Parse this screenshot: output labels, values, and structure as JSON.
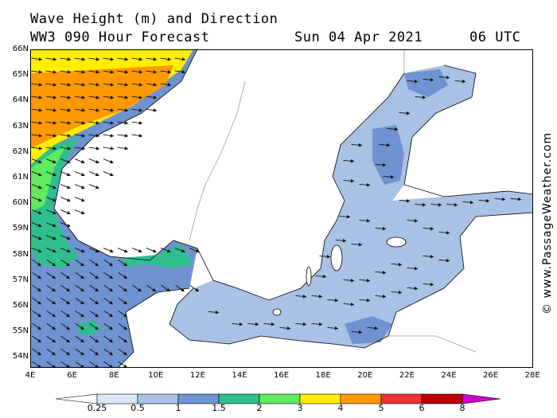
{
  "header": {
    "line1": "Wave Height (m) and Direction",
    "line2": "WW3 090 Hour Forecast",
    "date": "Sun 04 Apr 2021",
    "time": "06 UTC"
  },
  "credit": "© www.PassageWeather.com",
  "axes": {
    "lat_labels": [
      "66N",
      "65N",
      "64N",
      "63N",
      "62N",
      "61N",
      "60N",
      "59N",
      "58N",
      "57N",
      "56N",
      "55N",
      "54N"
    ],
    "lon_labels": [
      "4E",
      "6E",
      "8E",
      "10E",
      "12E",
      "14E",
      "16E",
      "18E",
      "20E",
      "22E",
      "24E",
      "26E",
      "28E"
    ]
  },
  "legend": {
    "labels": [
      "0.25",
      "0.5",
      "1",
      "1.5",
      "2",
      "3",
      "4",
      "5",
      "6",
      "8"
    ],
    "colors": [
      "#ffffff",
      "#dce6f5",
      "#a9c1e4",
      "#6f93d0",
      "#2fbf8e",
      "#5fea5f",
      "#ffee00",
      "#ff9900",
      "#ee3333",
      "#bb0000",
      "#cc00cc"
    ]
  },
  "palette": {
    "land": "#ffffff",
    "water_light": "#a9c1e4",
    "water_mid": "#6f93d0",
    "teal": "#2fbf8e",
    "green": "#5fea5f",
    "yellow": "#ffee00",
    "orange": "#ff9900"
  }
}
